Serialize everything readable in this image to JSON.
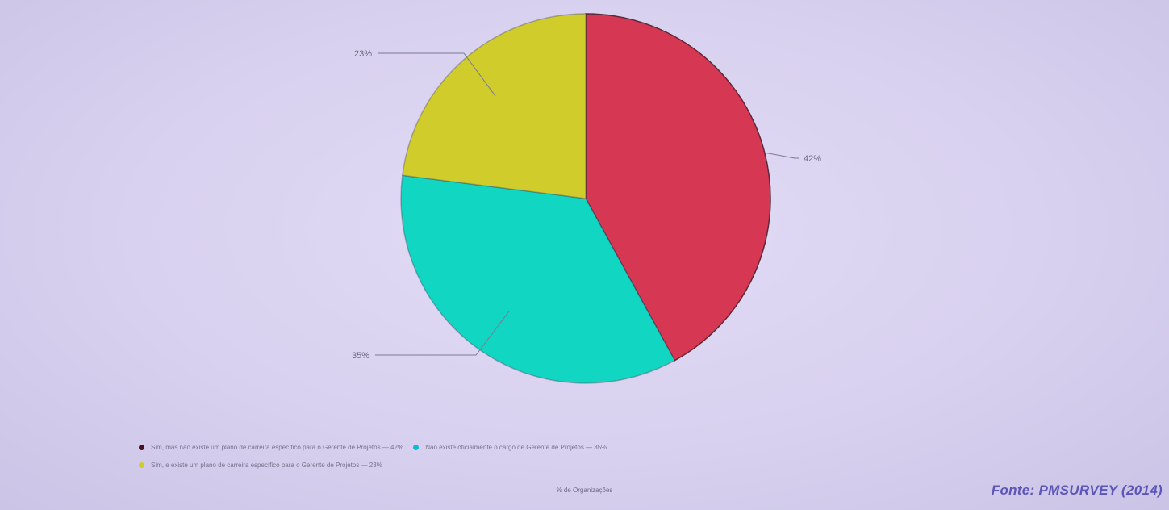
{
  "chart_data": {
    "type": "pie",
    "slices": [
      {
        "label": "Sim, mas não existe um plano de carreira específico para o Gerente de Projetos",
        "value": 42,
        "value_label": "42%",
        "color": "#d63752"
      },
      {
        "label": "Não existe oficialmente o cargo de Gerente de Projetos",
        "value": 35,
        "value_label": "35%",
        "color": "#11d6c2"
      },
      {
        "label": "Sim, e existe um plano de carreira específico para o Gerente de Projetos",
        "value": 23,
        "value_label": "23%",
        "color": "#cfcc2c"
      }
    ],
    "legend_entries": [
      "Sim, mas não existe um plano de carreira específico para o Gerente de Projetos — 42%",
      "Não existe oficialmente o cargo de Gerente de Projetos — 35%",
      "Sim, e existe um plano de carreira específico para o Gerente de Projetos — 23%"
    ],
    "legend_placement": "bottom",
    "xlabel": "% de Organizações",
    "start_angle": "12 o'clock",
    "direction": "clockwise"
  },
  "source": "Fonte: PMSURVEY (2014)"
}
